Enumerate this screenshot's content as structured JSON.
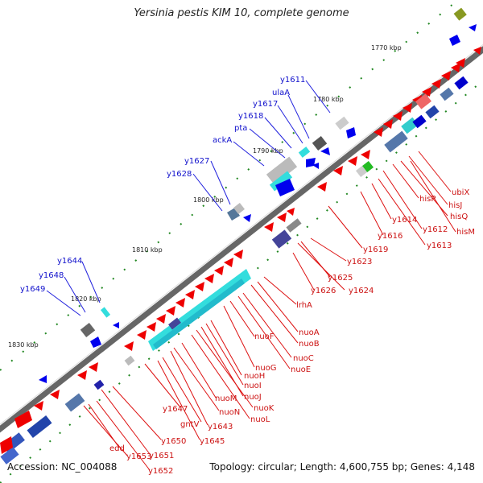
{
  "title": "Yersinia pestis KIM 10, complete genome",
  "footer": {
    "accession": "Accession: NC_004088",
    "topology": "Topology: circular; Length: 4,600,755 bp; Genes: 4,148"
  },
  "scale_labels": [
    "1770 kbp",
    "1780 kbp",
    "1790 kbp",
    "1800 kbp",
    "1810 kbp",
    "1820 kbp",
    "1830 kbp"
  ],
  "genes_plus": [
    "y1611",
    "ulaA",
    "y1617",
    "y1618",
    "pta",
    "ackA",
    "y1627",
    "y1628",
    "y1644",
    "y1648",
    "y1649"
  ],
  "genes_minus": [
    "ubiX",
    "hisJ",
    "hisQ",
    "hisP",
    "hisM",
    "y1612",
    "y1614",
    "y1613",
    "y1616",
    "y1619",
    "y1623",
    "y1625",
    "y1624",
    "y1626",
    "lrhA",
    "nuoA",
    "nuoB",
    "nuoC",
    "nuoE",
    "nuoF",
    "nuoG",
    "nuoH",
    "nuoI",
    "nuoJ",
    "nuoK",
    "nuoL",
    "nuoM",
    "nuoN",
    "gntV",
    "y1643",
    "y1647",
    "y1645",
    "y1650",
    "y1651",
    "edd",
    "y1653",
    "y1652"
  ],
  "colors": {
    "plus_strand": "#0000ee",
    "minus_strand": "#ee0000",
    "backbone": "#888888",
    "tick": "#228822",
    "operon_cyan": "#33dddd"
  }
}
